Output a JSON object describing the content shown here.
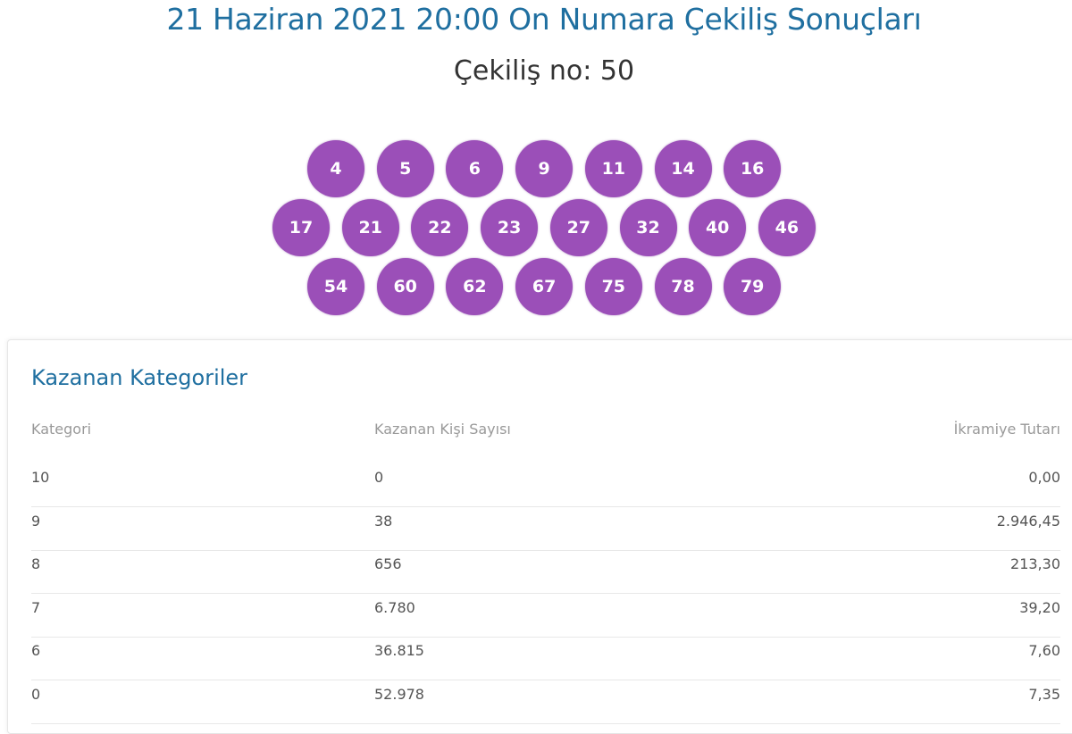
{
  "header": {
    "title": "21 Haziran 2021 20:00 On Numara Çekiliş Sonuçları",
    "draw_number": "Çekiliş no: 50"
  },
  "balls": {
    "color": "#9b4fb8",
    "rows": [
      [
        "4",
        "5",
        "6",
        "9",
        "11",
        "14",
        "16"
      ],
      [
        "17",
        "21",
        "22",
        "23",
        "27",
        "32",
        "40",
        "46"
      ],
      [
        "54",
        "60",
        "62",
        "67",
        "75",
        "78",
        "79"
      ]
    ]
  },
  "winners": {
    "title": "Kazanan Kategoriler",
    "columns": [
      "Kategori",
      "Kazanan Kişi Sayısı",
      "İkramiye Tutarı"
    ],
    "rows": [
      [
        "10",
        "0",
        "0,00"
      ],
      [
        "9",
        "38",
        "2.946,45"
      ],
      [
        "8",
        "656",
        "213,30"
      ],
      [
        "7",
        "6.780",
        "39,20"
      ],
      [
        "6",
        "36.815",
        "7,60"
      ],
      [
        "0",
        "52.978",
        "7,35"
      ]
    ]
  }
}
